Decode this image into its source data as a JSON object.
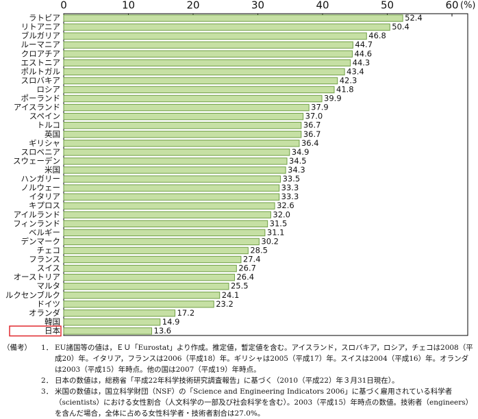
{
  "chart_data": {
    "type": "barh",
    "categories": [
      "ラトビア",
      "リトアニア",
      "ブルガリア",
      "ルーマニア",
      "クロアチア",
      "エストニア",
      "ポルトガル",
      "スロバキア",
      "ロシア",
      "ポーランド",
      "アイスランド",
      "スペイン",
      "トルコ",
      "英国",
      "ギリシャ",
      "スロベニア",
      "スウェーデン",
      "米国",
      "ハンガリー",
      "ノルウェー",
      "イタリア",
      "キプロス",
      "アイルランド",
      "フィンランド",
      "ベルギー",
      "デンマーク",
      "チェコ",
      "フランス",
      "スイス",
      "オーストリア",
      "マルタ",
      "ルクセンブルク",
      "ドイツ",
      "オランダ",
      "韓国",
      "日本"
    ],
    "values": [
      52.4,
      50.4,
      46.8,
      44.7,
      44.6,
      44.3,
      43.4,
      42.3,
      41.8,
      39.9,
      37.9,
      37.0,
      36.7,
      36.7,
      36.4,
      34.9,
      34.5,
      34.3,
      33.5,
      33.3,
      33.3,
      32.6,
      32.0,
      31.5,
      31.1,
      30.2,
      28.5,
      27.4,
      26.7,
      26.4,
      25.5,
      24.1,
      23.2,
      17.2,
      14.9,
      13.6
    ],
    "value_labels": [
      "52.4",
      "50.4",
      "46.8",
      "44.7",
      "44.6",
      "44.3",
      "43.4",
      "42.3",
      "41.8",
      "39.9",
      "37.9",
      "37.0",
      "36.7",
      "36.7",
      "36.4",
      "34.9",
      "34.5",
      "34.3",
      "33.5",
      "33.3",
      "33.3",
      "32.6",
      "32.0",
      "31.5",
      "31.1",
      "30.2",
      "28.5",
      "27.4",
      "26.7",
      "26.4",
      "25.5",
      "24.1",
      "23.2",
      "17.2",
      "14.9",
      "13.6"
    ],
    "color": "#c6e0a4",
    "edge_color": "#6f9e45",
    "highlight_color": "#e0282e",
    "xlim": [
      0,
      60
    ],
    "xticks": [
      0,
      10,
      20,
      30,
      40,
      50,
      60
    ],
    "x_unit": "(%)",
    "notes_label": "（備考）",
    "notes": [
      {
        "number": "1．",
        "text": "EU諸国等の値は，ＥＵ「Eurostat」より作成。推定値，暫定値を含む。アイスランド，スロバキア，ロシア，チェコは2008（平成20）年。イタリア，フランスは2006（平成18）年。ギリシャは2005（平成17）年。スイスは2004（平成16）年。オランダは2003（平成15）年時点。他の国は2007（平成19）年時点。"
      },
      {
        "number": "2．",
        "text": "日本の数値は，総務省「平成22年科学技術研究調査報告」に基づく（2010（平成22）年３月31日現在）。"
      },
      {
        "number": "3．",
        "text": "米国の数値は，国立科学財団（NSF）の「Science and Engineering Indicators 2006」に基づく雇用されている科学者（scientists）における女性割合（人文科学の一部及び社会科学を含む）。2003（平成15）年時点の数値。技術者（engineers）を含んだ場合，全体に占める女性科学者・技術者割合は27.0%。"
      }
    ]
  }
}
